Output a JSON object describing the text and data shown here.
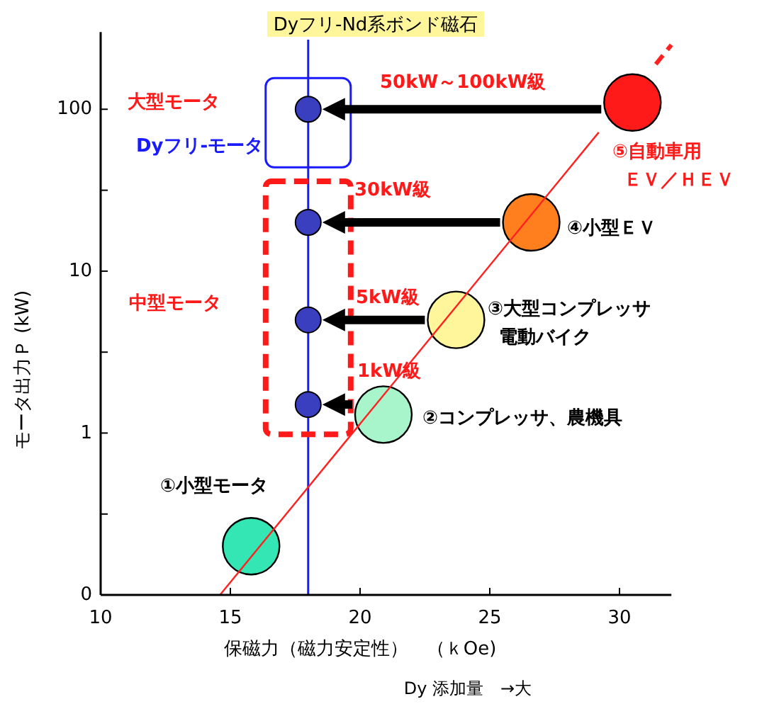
{
  "chart_data": {
    "type": "bubble",
    "title": "Dyフリ-Nd系ボンド磁石",
    "xlabel": "保磁力（磁力安定性）　（ｋOe)",
    "ylabel": "モータ出力Ｐ (kW)",
    "xlim": [
      10,
      32
    ],
    "xticks": [
      10,
      15,
      20,
      25,
      30
    ],
    "ylim": [
      0.1,
      300
    ],
    "yticks": [
      {
        "value": 0.1,
        "label": "0"
      },
      {
        "value": 0.316,
        "label": null
      },
      1,
      {
        "value": 3.16,
        "label": null
      },
      10,
      {
        "value": 31.6,
        "label": null
      },
      100
    ],
    "log": "y",
    "grid": false,
    "series": [
      {
        "x": [
          15.8,
          20.9,
          23.7,
          26.6,
          30.5
        ],
        "values": [
          0.2,
          1.3,
          5,
          20,
          110
        ],
        "sizes": [
          1,
          1,
          1,
          1,
          1
        ],
        "colors": [
          "#33e6b4",
          "#a8f5cc",
          "#fff59a",
          "#ff7f1f",
          "#ff1a1a"
        ]
      },
      {
        "type": "scatter",
        "x": [
          18,
          18,
          18,
          18
        ],
        "values": [
          1.5,
          5,
          20,
          100
        ],
        "color": "#3a3fc0",
        "marker": "circle"
      },
      {
        "type": "line",
        "x": [
          14.6,
          29.2
        ],
        "values": [
          0.1,
          72
        ],
        "color": "#ff2020",
        "line_style": "solid"
      },
      {
        "type": "line",
        "x": [
          31.4,
          32
        ],
        "values": [
          190,
          250
        ],
        "color": "#ff2020",
        "line_style": "dashed"
      }
    ],
    "ref_lines": [
      {
        "axis": "x",
        "value": 18,
        "color": "#1a1aff"
      }
    ],
    "annotations": [
      "大型モータ",
      "Dyフリ-モータ",
      "中型モータ",
      "50kW～100kW級",
      "30kW級",
      "5kW級",
      "1kW級",
      "⑤自動車用ＥＶ／ＨＥＶ",
      "④小型ＥＶ",
      "③大型コンプレッサ電動バイク",
      "②コンプレッサ、農機具",
      "①小型モータ",
      "Dy 添加量　→大"
    ]
  }
}
